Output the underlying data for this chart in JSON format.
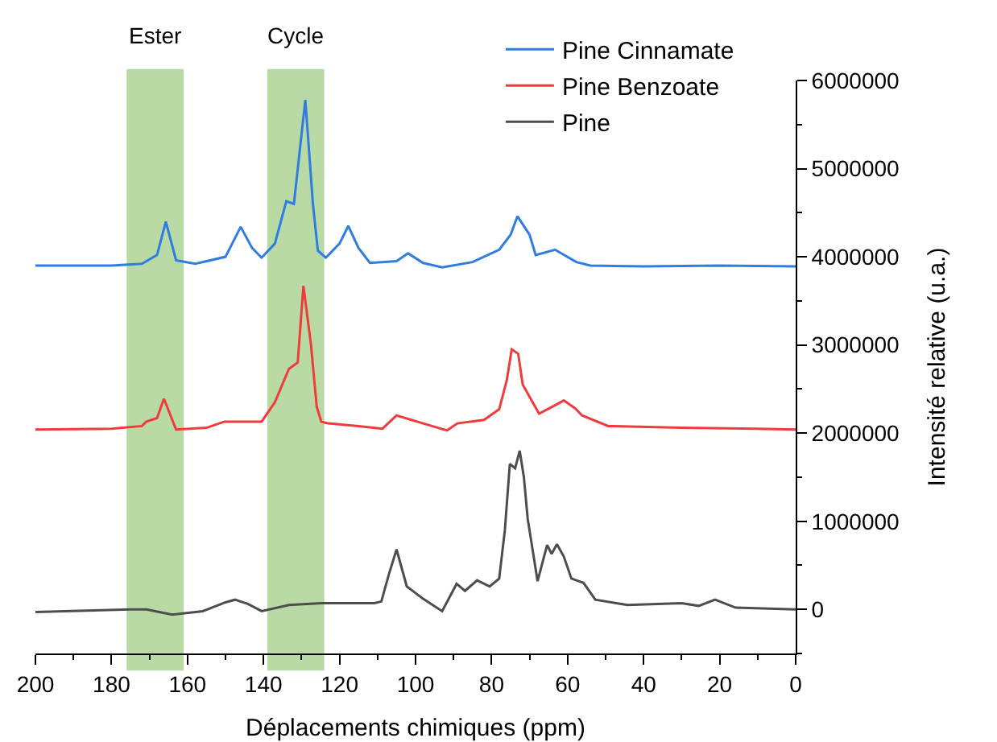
{
  "chart_data": {
    "type": "line",
    "xlabel": "Déplacements chimiques (ppm)",
    "ylabel": "Intensité relative (u.a.)",
    "xlim": [
      200,
      0
    ],
    "xticks": [
      200,
      180,
      160,
      140,
      120,
      100,
      80,
      60,
      40,
      20,
      0
    ],
    "ylim": [
      -500000,
      6000000
    ],
    "yticks": [
      0,
      1000000,
      2000000,
      3000000,
      4000000,
      5000000,
      6000000
    ],
    "grid": false,
    "legend": "top right",
    "marker": "none",
    "line_style": "solid",
    "bands": [
      {
        "axis": "x",
        "from": 176,
        "to": 161,
        "label": "Ester",
        "color": "#a9d18e"
      },
      {
        "axis": "x",
        "from": 139,
        "to": 124,
        "label": "Cycle",
        "color": "#a9d18e"
      }
    ],
    "series": [
      {
        "name": "Pine Cinnamate",
        "color": "#2f7de1",
        "x": [
          200,
          180,
          172,
          168,
          165.7,
          163,
          158,
          150,
          146,
          143,
          140.5,
          137,
          134,
          132,
          129,
          127,
          125.7,
          123.6,
          120,
          117.7,
          115,
          112,
          105,
          102,
          98,
          93,
          85,
          78,
          75,
          73.2,
          70,
          68.4,
          63.3,
          57.7,
          54,
          40,
          20,
          0
        ],
        "values": [
          3900000,
          3900000,
          3920000,
          4020000,
          4400000,
          3960000,
          3920000,
          4000000,
          4340000,
          4100000,
          3990000,
          4150000,
          4630000,
          4600000,
          5780000,
          4600000,
          4070000,
          3990000,
          4150000,
          4350000,
          4100000,
          3930000,
          3950000,
          4040000,
          3930000,
          3880000,
          3940000,
          4080000,
          4250000,
          4460000,
          4250000,
          4020000,
          4080000,
          3940000,
          3900000,
          3890000,
          3900000,
          3890000
        ]
      },
      {
        "name": "Pine Benzoate",
        "color": "#ef3b3b",
        "x": [
          200,
          180,
          172,
          170.8,
          168,
          166.2,
          164,
          163,
          155,
          150.3,
          140.5,
          137,
          133.3,
          131,
          129.5,
          127.5,
          126,
          124.8,
          123,
          115,
          108.7,
          105,
          98,
          91.7,
          89,
          82,
          78,
          76,
          74.7,
          73,
          71.8,
          67.5,
          64,
          61,
          58,
          56.2,
          49.3,
          30,
          10,
          0
        ],
        "values": [
          2040000,
          2050000,
          2080000,
          2130000,
          2170000,
          2390000,
          2150000,
          2040000,
          2060000,
          2130000,
          2130000,
          2350000,
          2730000,
          2800000,
          3670000,
          3000000,
          2300000,
          2130000,
          2110000,
          2080000,
          2050000,
          2200000,
          2110000,
          2030000,
          2110000,
          2150000,
          2270000,
          2600000,
          2950000,
          2900000,
          2550000,
          2220000,
          2300000,
          2370000,
          2280000,
          2200000,
          2080000,
          2060000,
          2050000,
          2040000
        ]
      },
      {
        "name": "Pine",
        "color": "#4d4d4d",
        "x": [
          200,
          175,
          170.8,
          164,
          156,
          150,
          147.5,
          144,
          140.5,
          133.3,
          124.8,
          110.8,
          109,
          107,
          105,
          102.3,
          98,
          93,
          89.2,
          87,
          83.8,
          80.5,
          78,
          76.5,
          75.2,
          73.8,
          72.6,
          71.5,
          70.5,
          67.9,
          65.4,
          64.2,
          62.8,
          61,
          59,
          55.8,
          52.7,
          44.2,
          30,
          25.5,
          21.2,
          15.8,
          0
        ],
        "values": [
          -30000,
          0,
          0,
          -60000,
          -20000,
          80000,
          110000,
          60000,
          -20000,
          50000,
          70000,
          70000,
          90000,
          400000,
          680000,
          260000,
          120000,
          -20000,
          290000,
          210000,
          330000,
          260000,
          350000,
          900000,
          1650000,
          1600000,
          1800000,
          1500000,
          1030000,
          320000,
          730000,
          630000,
          740000,
          600000,
          350000,
          300000,
          110000,
          50000,
          70000,
          40000,
          110000,
          20000,
          0
        ]
      }
    ]
  }
}
